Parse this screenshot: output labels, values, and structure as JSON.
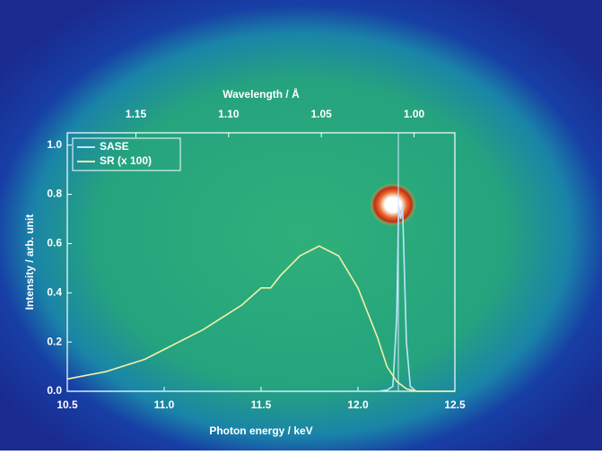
{
  "chart_data": {
    "type": "line",
    "x_label": "Photon energy / keV",
    "y_label": "Intensity / arb. unit",
    "x2_label": "Wavelength / Å",
    "xlim": [
      10.5,
      12.5
    ],
    "xticks": [
      10.5,
      {
        "value": 11,
        "label": "11.0"
      },
      11.5,
      {
        "value": 12,
        "label": "12.0"
      },
      12.5
    ],
    "ylim": [
      0,
      1.05
    ],
    "yticks": [
      {
        "value": 0,
        "label": "0.0"
      },
      0.2,
      0.4,
      0.6,
      0.8,
      {
        "value": 1,
        "label": "1.0"
      }
    ],
    "x2lim": [
      1.187,
      0.978
    ],
    "x2ticks": [
      1.15,
      {
        "value": 1.1,
        "label": "1.10"
      },
      1.05,
      {
        "value": 1,
        "label": "1.00"
      }
    ],
    "legend": "upper left",
    "series": [
      {
        "name": "SASE",
        "color": "#bfe4ff",
        "x": [
          10.5,
          12.1,
          12.15,
          12.18,
          12.2,
          12.21,
          12.22,
          12.23,
          12.25,
          12.27,
          12.3,
          12.5
        ],
        "values": [
          0,
          0,
          0.005,
          0.02,
          0.3,
          0.75,
          0.7,
          0.75,
          0.2,
          0.02,
          0,
          0
        ]
      },
      {
        "name": "SR (x 100)",
        "color": "#f2f0a8",
        "x": [
          10.5,
          10.7,
          10.9,
          11.0,
          11.1,
          11.2,
          11.3,
          11.4,
          11.5,
          11.55,
          11.6,
          11.7,
          11.8,
          11.9,
          12.0,
          12.1,
          12.15,
          12.2,
          12.25,
          12.3,
          12.5
        ],
        "values": [
          0.05,
          0.08,
          0.13,
          0.17,
          0.21,
          0.25,
          0.3,
          0.35,
          0.42,
          0.42,
          0.47,
          0.55,
          0.59,
          0.55,
          0.42,
          0.22,
          0.1,
          0.04,
          0.01,
          0,
          0
        ]
      }
    ]
  }
}
